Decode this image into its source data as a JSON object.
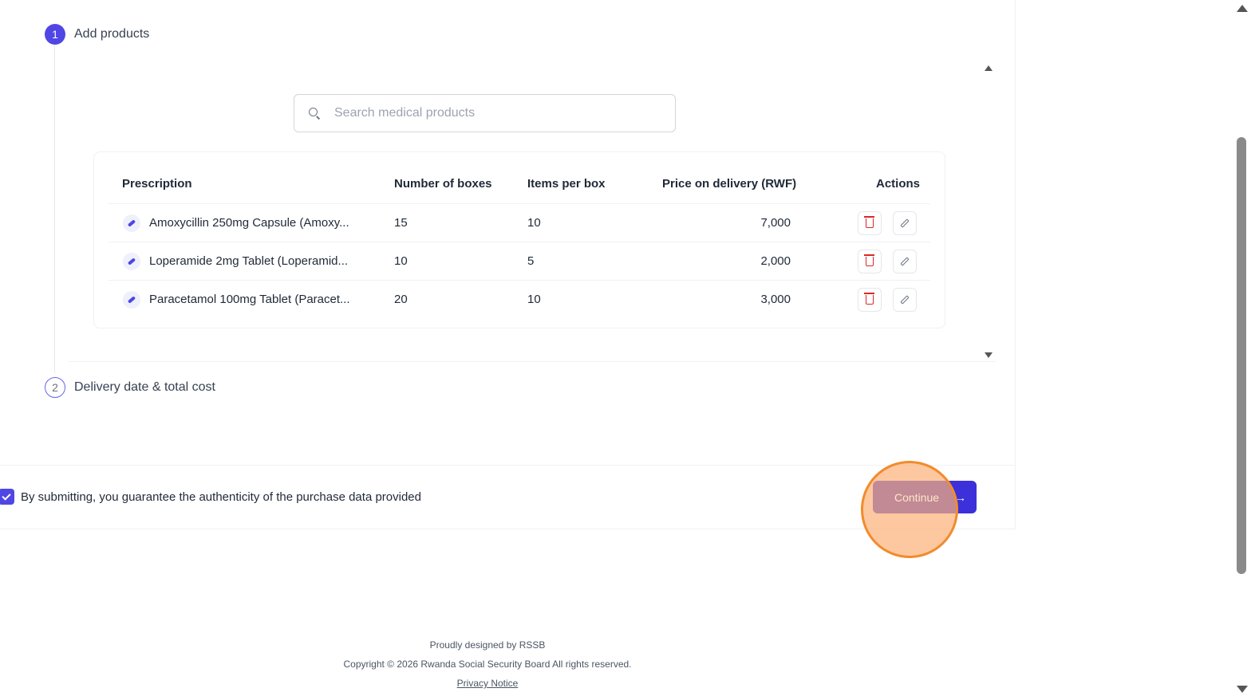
{
  "steps": [
    {
      "number": "1",
      "label": "Add products"
    },
    {
      "number": "2",
      "label": "Delivery date & total cost"
    }
  ],
  "search": {
    "placeholder": "Search medical products"
  },
  "table": {
    "headers": {
      "prescription": "Prescription",
      "boxes": "Number of boxes",
      "items": "Items per box",
      "price": "Price on delivery (RWF)",
      "actions": "Actions"
    },
    "rows": [
      {
        "name": "Amoxycillin 250mg Capsule (Amoxy...",
        "boxes": "15",
        "items": "10",
        "price": "7,000"
      },
      {
        "name": "Loperamide 2mg Tablet (Loperamid...",
        "boxes": "10",
        "items": "5",
        "price": "2,000"
      },
      {
        "name": "Paracetamol 100mg Tablet (Paracet...",
        "boxes": "20",
        "items": "10",
        "price": "3,000"
      }
    ]
  },
  "agreement": {
    "checked": true,
    "text": "By submitting, you guarantee the authenticity of the purchase data provided"
  },
  "continue_button": {
    "label": "Continue",
    "arrow": "→"
  },
  "footer": {
    "designed_by": "Proudly designed by RSSB",
    "copyright": "Copyright © 2026 Rwanda Social Security Board All rights reserved.",
    "privacy": "Privacy Notice"
  },
  "colors": {
    "accent": "#4f46e5",
    "button": "#3b30d9",
    "delete": "#dc2626",
    "highlight": "#f28b2b"
  }
}
